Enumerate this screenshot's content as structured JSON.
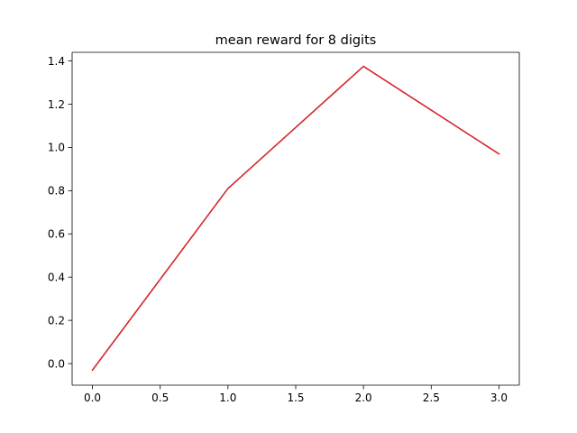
{
  "chart_data": {
    "type": "line",
    "title": "mean reward for 8 digits",
    "xlabel": "",
    "ylabel": "",
    "xlim": [
      -0.15,
      3.15
    ],
    "ylim": [
      -0.1,
      1.44
    ],
    "xticks": [
      0.0,
      0.5,
      1.0,
      1.5,
      2.0,
      2.5,
      3.0
    ],
    "xtick_labels": [
      "0.0",
      "0.5",
      "1.0",
      "1.5",
      "2.0",
      "2.5",
      "3.0"
    ],
    "yticks": [
      0.0,
      0.2,
      0.4,
      0.6,
      0.8,
      1.0,
      1.2,
      1.4
    ],
    "ytick_labels": [
      "0.0",
      "0.2",
      "0.4",
      "0.6",
      "0.8",
      "1.0",
      "1.2",
      "1.4"
    ],
    "grid": false,
    "series": [
      {
        "name": "mean reward",
        "color": "#d62728",
        "x": [
          0,
          1,
          2,
          3
        ],
        "values": [
          -0.03,
          0.81,
          1.375,
          0.97
        ]
      }
    ]
  }
}
